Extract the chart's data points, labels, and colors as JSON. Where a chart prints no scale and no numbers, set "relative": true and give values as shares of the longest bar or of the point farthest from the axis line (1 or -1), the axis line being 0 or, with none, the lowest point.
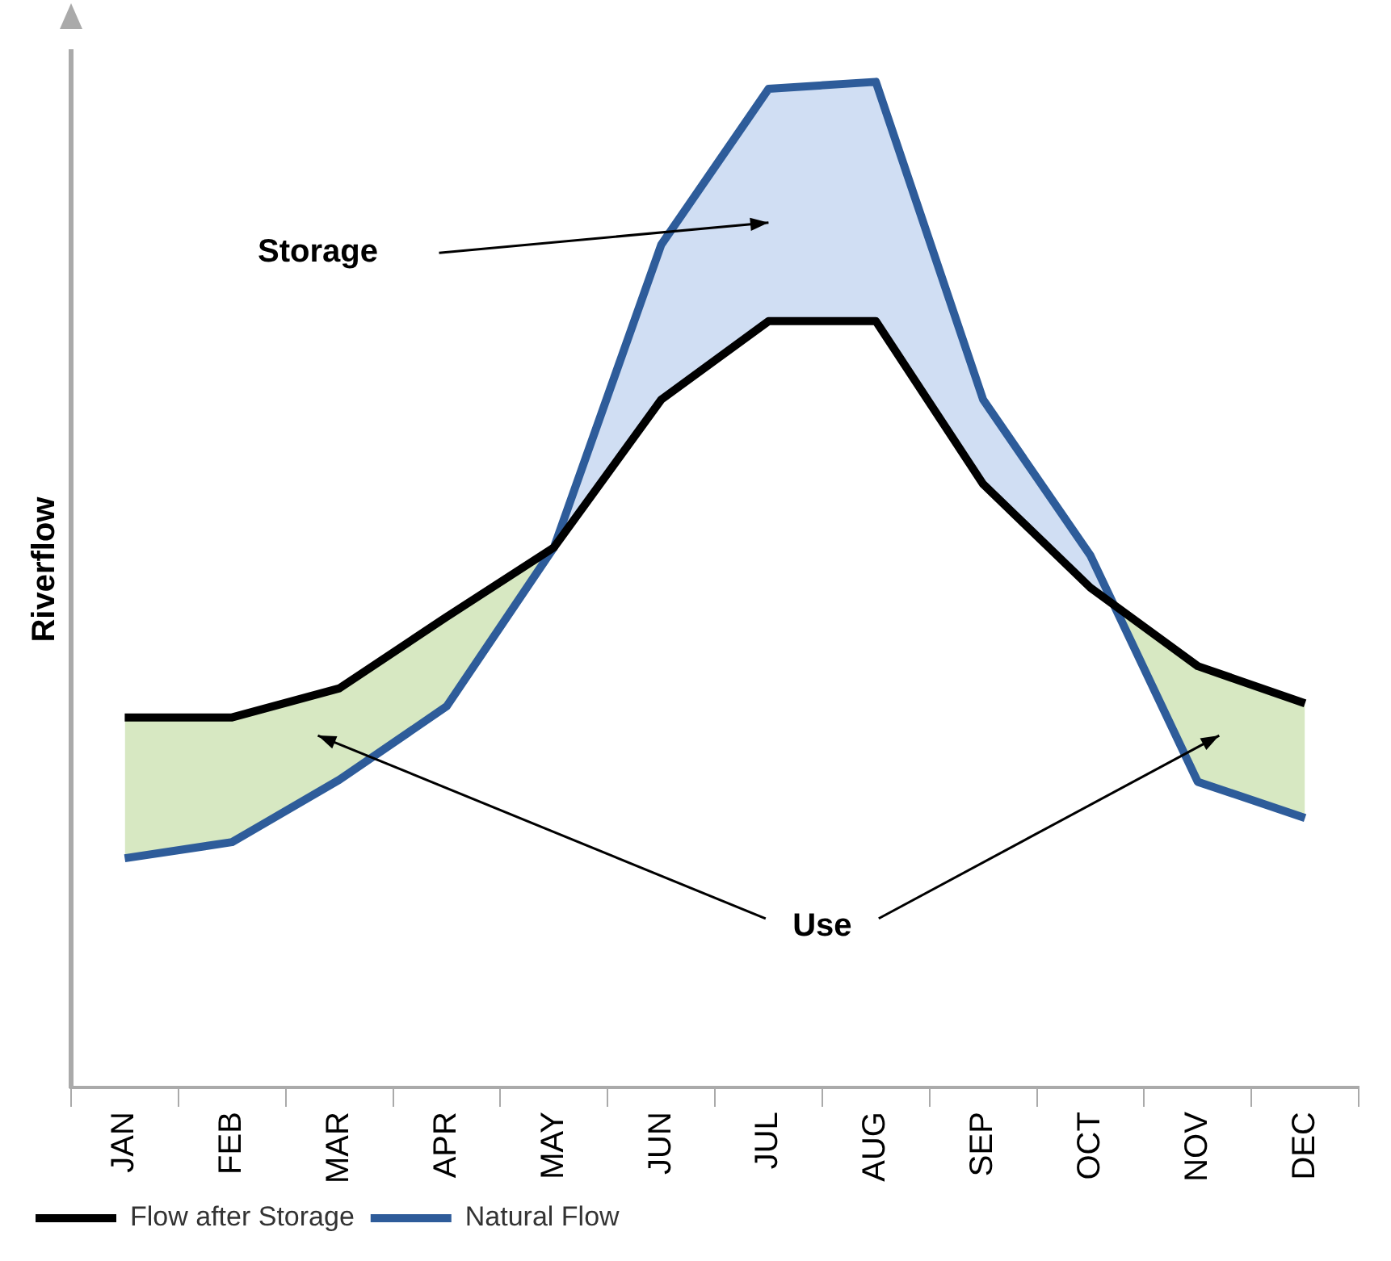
{
  "chart_data": {
    "type": "line",
    "relative": true,
    "ylabel": "Riverflow",
    "categories": [
      "JAN",
      "FEB",
      "MAR",
      "APR",
      "MAY",
      "JUN",
      "JUL",
      "AUG",
      "SEP",
      "OCT",
      "NOV",
      "DEC"
    ],
    "series": [
      {
        "name": "Flow after Storage",
        "color": "#000000",
        "values": [
          0.368,
          0.368,
          0.397,
          0.468,
          0.537,
          0.684,
          0.762,
          0.762,
          0.6,
          0.497,
          0.419,
          0.382
        ]
      },
      {
        "name": "Natural Flow",
        "color": "#2e5c9a",
        "values": [
          0.228,
          0.244,
          0.306,
          0.379,
          0.537,
          0.838,
          0.993,
          1.0,
          0.684,
          0.529,
          0.304,
          0.268
        ]
      }
    ],
    "annotations": [
      "Storage",
      "Use"
    ],
    "legend": "bottom left",
    "grid": false,
    "marker": "none",
    "line_style": "solid"
  }
}
